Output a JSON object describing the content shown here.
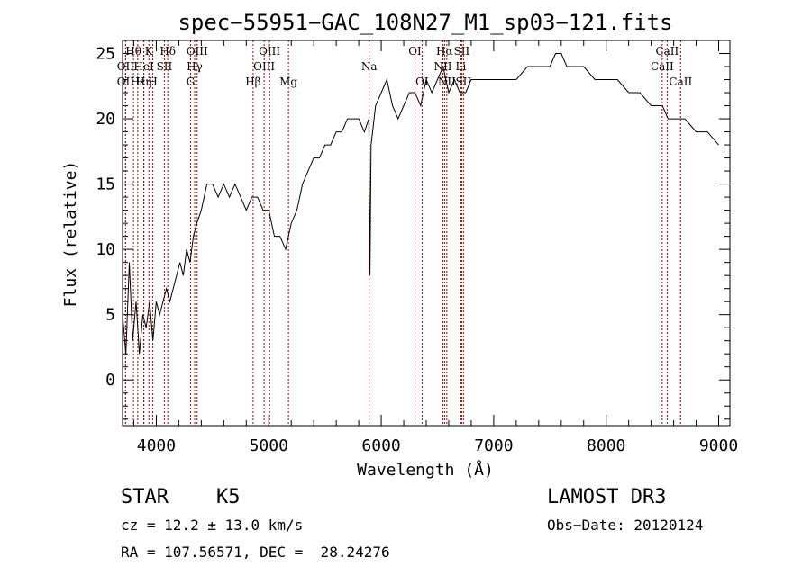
{
  "chart_data": {
    "type": "line",
    "title": "spec−55951−GAC_108N27_M1_sp03−121.fits",
    "xlabel": "Wavelength (Å)",
    "ylabel": "Flux (relative)",
    "xlim": [
      3700,
      9100
    ],
    "ylim": [
      -3.5,
      26
    ],
    "xticks": [
      "4000",
      "5000",
      "6000",
      "7000",
      "8000",
      "9000"
    ],
    "yticks": [
      "0",
      "5",
      "10",
      "15",
      "20",
      "25"
    ],
    "spectrum": {
      "x": [
        3700,
        3730,
        3760,
        3790,
        3820,
        3850,
        3880,
        3910,
        3940,
        3970,
        4000,
        4030,
        4060,
        4090,
        4120,
        4150,
        4180,
        4210,
        4240,
        4270,
        4300,
        4330,
        4360,
        4400,
        4450,
        4500,
        4550,
        4600,
        4650,
        4700,
        4750,
        4800,
        4850,
        4900,
        4950,
        5000,
        5050,
        5100,
        5150,
        5200,
        5250,
        5300,
        5350,
        5400,
        5450,
        5500,
        5550,
        5600,
        5650,
        5700,
        5750,
        5800,
        5850,
        5890,
        5900,
        5910,
        5950,
        6000,
        6050,
        6100,
        6150,
        6200,
        6250,
        6300,
        6350,
        6400,
        6450,
        6500,
        6550,
        6600,
        6650,
        6700,
        6750,
        6800,
        6900,
        7000,
        7100,
        7200,
        7300,
        7400,
        7500,
        7550,
        7600,
        7650,
        7700,
        7800,
        7900,
        8000,
        8100,
        8200,
        8300,
        8400,
        8500,
        8550,
        8600,
        8650,
        8700,
        8800,
        8900,
        9000
      ],
      "y": [
        5,
        2,
        9,
        3,
        6,
        2,
        5,
        4,
        6,
        3,
        6,
        5,
        6,
        7,
        6,
        7,
        8,
        9,
        8,
        10,
        9,
        11,
        12,
        13,
        15,
        15,
        14,
        15,
        14,
        15,
        14,
        13,
        14,
        14,
        13,
        13,
        11,
        11,
        10,
        12,
        13,
        15,
        16,
        17,
        17,
        18,
        18,
        19,
        19,
        20,
        20,
        20,
        19,
        20,
        8,
        18,
        21,
        22,
        23,
        21,
        20,
        21,
        22,
        22,
        21,
        23,
        22,
        23,
        24,
        22,
        23,
        22,
        22,
        23,
        23,
        23,
        23,
        23,
        24,
        24,
        24,
        25,
        25,
        24,
        24,
        24,
        23,
        23,
        23,
        22,
        22,
        21,
        21,
        20,
        20,
        20,
        20,
        19,
        19,
        18
      ]
    },
    "lines": [
      {
        "label": "Hθ",
        "x": 3797,
        "row": 0
      },
      {
        "label": "OII",
        "x": 3727,
        "row": 1
      },
      {
        "label": "OII",
        "x": 3727,
        "row": 2
      },
      {
        "label": "Hε",
        "x": 3835,
        "row": 2
      },
      {
        "label": "HeI",
        "x": 3889,
        "row": 1
      },
      {
        "label": "K",
        "x": 3934,
        "row": 0
      },
      {
        "label": "H",
        "x": 3969,
        "row": 2
      },
      {
        "label": "Hη",
        "x": 3889,
        "row": 2
      },
      {
        "label": "SII",
        "x": 4072,
        "row": 1
      },
      {
        "label": "Hδ",
        "x": 4102,
        "row": 0
      },
      {
        "label": "OIII",
        "x": 4363,
        "row": 0
      },
      {
        "label": "Hγ",
        "x": 4341,
        "row": 1
      },
      {
        "label": "G",
        "x": 4305,
        "row": 2
      },
      {
        "label": "Hβ",
        "x": 4861,
        "row": 2
      },
      {
        "label": "OIII",
        "x": 4959,
        "row": 1
      },
      {
        "label": "OIII",
        "x": 5007,
        "row": 0
      },
      {
        "label": "Mg",
        "x": 5175,
        "row": 2
      },
      {
        "label": "Na",
        "x": 5893,
        "row": 1
      },
      {
        "label": "OI",
        "x": 6300,
        "row": 0
      },
      {
        "label": "OI",
        "x": 6363,
        "row": 2
      },
      {
        "label": "Hα",
        "x": 6563,
        "row": 0
      },
      {
        "label": "NII",
        "x": 6548,
        "row": 1
      },
      {
        "label": "NII",
        "x": 6583,
        "row": 2
      },
      {
        "label": "SII",
        "x": 6716,
        "row": 0
      },
      {
        "label": "Li",
        "x": 6708,
        "row": 1
      },
      {
        "label": "SII",
        "x": 6731,
        "row": 2
      },
      {
        "label": "CaII",
        "x": 8498,
        "row": 1
      },
      {
        "label": "CaII",
        "x": 8542,
        "row": 0
      },
      {
        "label": "CaII",
        "x": 8662,
        "row": 2
      }
    ]
  },
  "info": {
    "class": "STAR",
    "subclass": "K5",
    "survey": "LAMOST DR3",
    "cz": "cz = 12.2 ± 13.0 km/s",
    "obs_date": "Obs−Date: 20120124",
    "coords": "RA = 107.56571, DEC =  28.24276"
  }
}
